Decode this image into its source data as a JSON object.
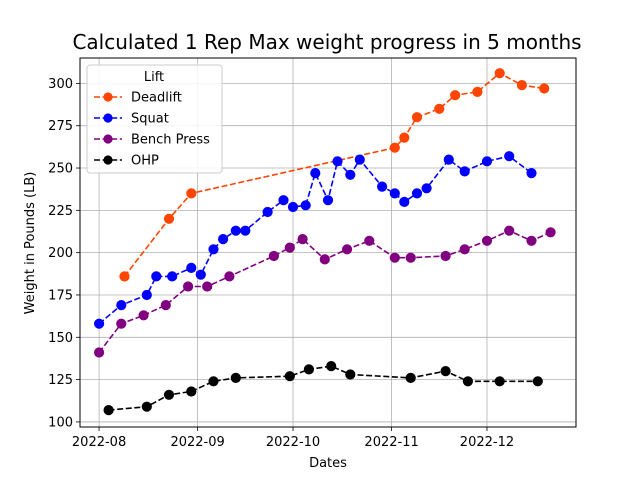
{
  "chart_data": {
    "type": "line",
    "title": "Calculated 1 Rep Max weight progress in 5 months",
    "xlabel": "Dates",
    "ylabel": "Weight in Pounds (LB)",
    "x_ticks": [
      "2022-08",
      "2022-09",
      "2022-10",
      "2022-11",
      "2022-12"
    ],
    "y_ticks": [
      100,
      125,
      150,
      175,
      200,
      225,
      250,
      275,
      300
    ],
    "ylim": [
      97,
      315
    ],
    "xlim": [
      "2022-07-26",
      "2022-12-29"
    ],
    "grid": true,
    "legend": {
      "title": "Lift",
      "position": "top-left"
    },
    "series": [
      {
        "name": "Deadlift",
        "color": "#ff4500",
        "line_style": "dashed",
        "marker": "circle",
        "points": [
          [
            "2022-08-09",
            186
          ],
          [
            "2022-08-23",
            220
          ],
          [
            "2022-08-30",
            235
          ],
          [
            "2022-11-02",
            262
          ],
          [
            "2022-11-05",
            268
          ],
          [
            "2022-11-09",
            280
          ],
          [
            "2022-11-16",
            285
          ],
          [
            "2022-11-21",
            293
          ],
          [
            "2022-11-28",
            295
          ],
          [
            "2022-12-05",
            306
          ],
          [
            "2022-12-12",
            299
          ],
          [
            "2022-12-19",
            297
          ]
        ]
      },
      {
        "name": "Squat",
        "color": "#0000ff",
        "line_style": "dashed",
        "marker": "circle",
        "points": [
          [
            "2022-08-01",
            158
          ],
          [
            "2022-08-08",
            169
          ],
          [
            "2022-08-16",
            175
          ],
          [
            "2022-08-19",
            186
          ],
          [
            "2022-08-24",
            186
          ],
          [
            "2022-08-30",
            191
          ],
          [
            "2022-09-02",
            187
          ],
          [
            "2022-09-06",
            202
          ],
          [
            "2022-09-09",
            208
          ],
          [
            "2022-09-13",
            213
          ],
          [
            "2022-09-16",
            213
          ],
          [
            "2022-09-23",
            224
          ],
          [
            "2022-09-28",
            231
          ],
          [
            "2022-10-01",
            227
          ],
          [
            "2022-10-05",
            228
          ],
          [
            "2022-10-08",
            247
          ],
          [
            "2022-10-12",
            231
          ],
          [
            "2022-10-15",
            254
          ],
          [
            "2022-10-19",
            246
          ],
          [
            "2022-10-22",
            255
          ],
          [
            "2022-10-29",
            239
          ],
          [
            "2022-11-02",
            235
          ],
          [
            "2022-11-05",
            230
          ],
          [
            "2022-11-09",
            235
          ],
          [
            "2022-11-12",
            238
          ],
          [
            "2022-11-19",
            255
          ],
          [
            "2022-11-24",
            248
          ],
          [
            "2022-12-01",
            254
          ],
          [
            "2022-12-08",
            257
          ],
          [
            "2022-12-15",
            247
          ]
        ]
      },
      {
        "name": "Bench Press",
        "color": "#800080",
        "line_style": "dashed",
        "marker": "circle",
        "points": [
          [
            "2022-08-01",
            141
          ],
          [
            "2022-08-08",
            158
          ],
          [
            "2022-08-15",
            163
          ],
          [
            "2022-08-22",
            169
          ],
          [
            "2022-08-29",
            180
          ],
          [
            "2022-09-04",
            180
          ],
          [
            "2022-09-11",
            186
          ],
          [
            "2022-09-25",
            198
          ],
          [
            "2022-09-30",
            203
          ],
          [
            "2022-10-04",
            208
          ],
          [
            "2022-10-11",
            196
          ],
          [
            "2022-10-18",
            202
          ],
          [
            "2022-10-25",
            207
          ],
          [
            "2022-11-02",
            197
          ],
          [
            "2022-11-07",
            197
          ],
          [
            "2022-11-18",
            198
          ],
          [
            "2022-11-24",
            202
          ],
          [
            "2022-12-01",
            207
          ],
          [
            "2022-12-08",
            213
          ],
          [
            "2022-12-15",
            207
          ],
          [
            "2022-12-21",
            212
          ]
        ]
      },
      {
        "name": "OHP",
        "color": "#000000",
        "line_style": "dashed",
        "marker": "circle",
        "points": [
          [
            "2022-08-04",
            107
          ],
          [
            "2022-08-16",
            109
          ],
          [
            "2022-08-23",
            116
          ],
          [
            "2022-08-30",
            118
          ],
          [
            "2022-09-06",
            124
          ],
          [
            "2022-09-13",
            126
          ],
          [
            "2022-09-30",
            127
          ],
          [
            "2022-10-06",
            131
          ],
          [
            "2022-10-13",
            133
          ],
          [
            "2022-10-19",
            128
          ],
          [
            "2022-11-07",
            126
          ],
          [
            "2022-11-18",
            130
          ],
          [
            "2022-11-25",
            124
          ],
          [
            "2022-12-05",
            124
          ],
          [
            "2022-12-17",
            124
          ]
        ]
      }
    ]
  }
}
